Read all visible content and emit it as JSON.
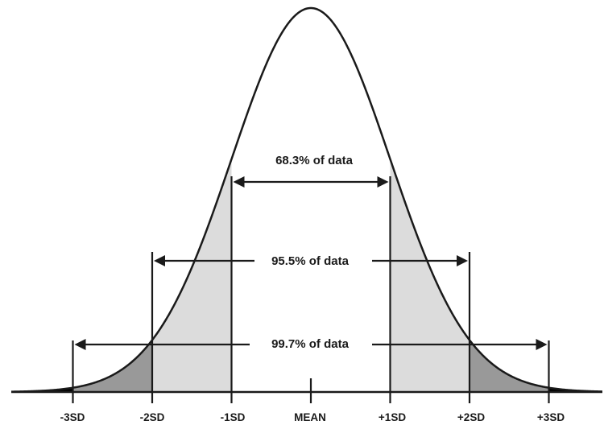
{
  "ranges": [
    {
      "label": "68.3% of data",
      "from_sd": -1,
      "to_sd": 1
    },
    {
      "label": "95.5% of data",
      "from_sd": -2,
      "to_sd": 2
    },
    {
      "label": "99.7% of data",
      "from_sd": -3,
      "to_sd": 3
    }
  ],
  "axis_labels": [
    "-3SD",
    "-2SD",
    "-1SD",
    "MEAN",
    "+1SD",
    "+2SD",
    "+3SD"
  ],
  "colors": {
    "curve": "#1a1a1a",
    "within_1sd": "#ffffff",
    "band_1_2sd": "#dcdcdc",
    "band_2_3sd": "#999999",
    "tail_beyond_3sd": "#000000"
  }
}
